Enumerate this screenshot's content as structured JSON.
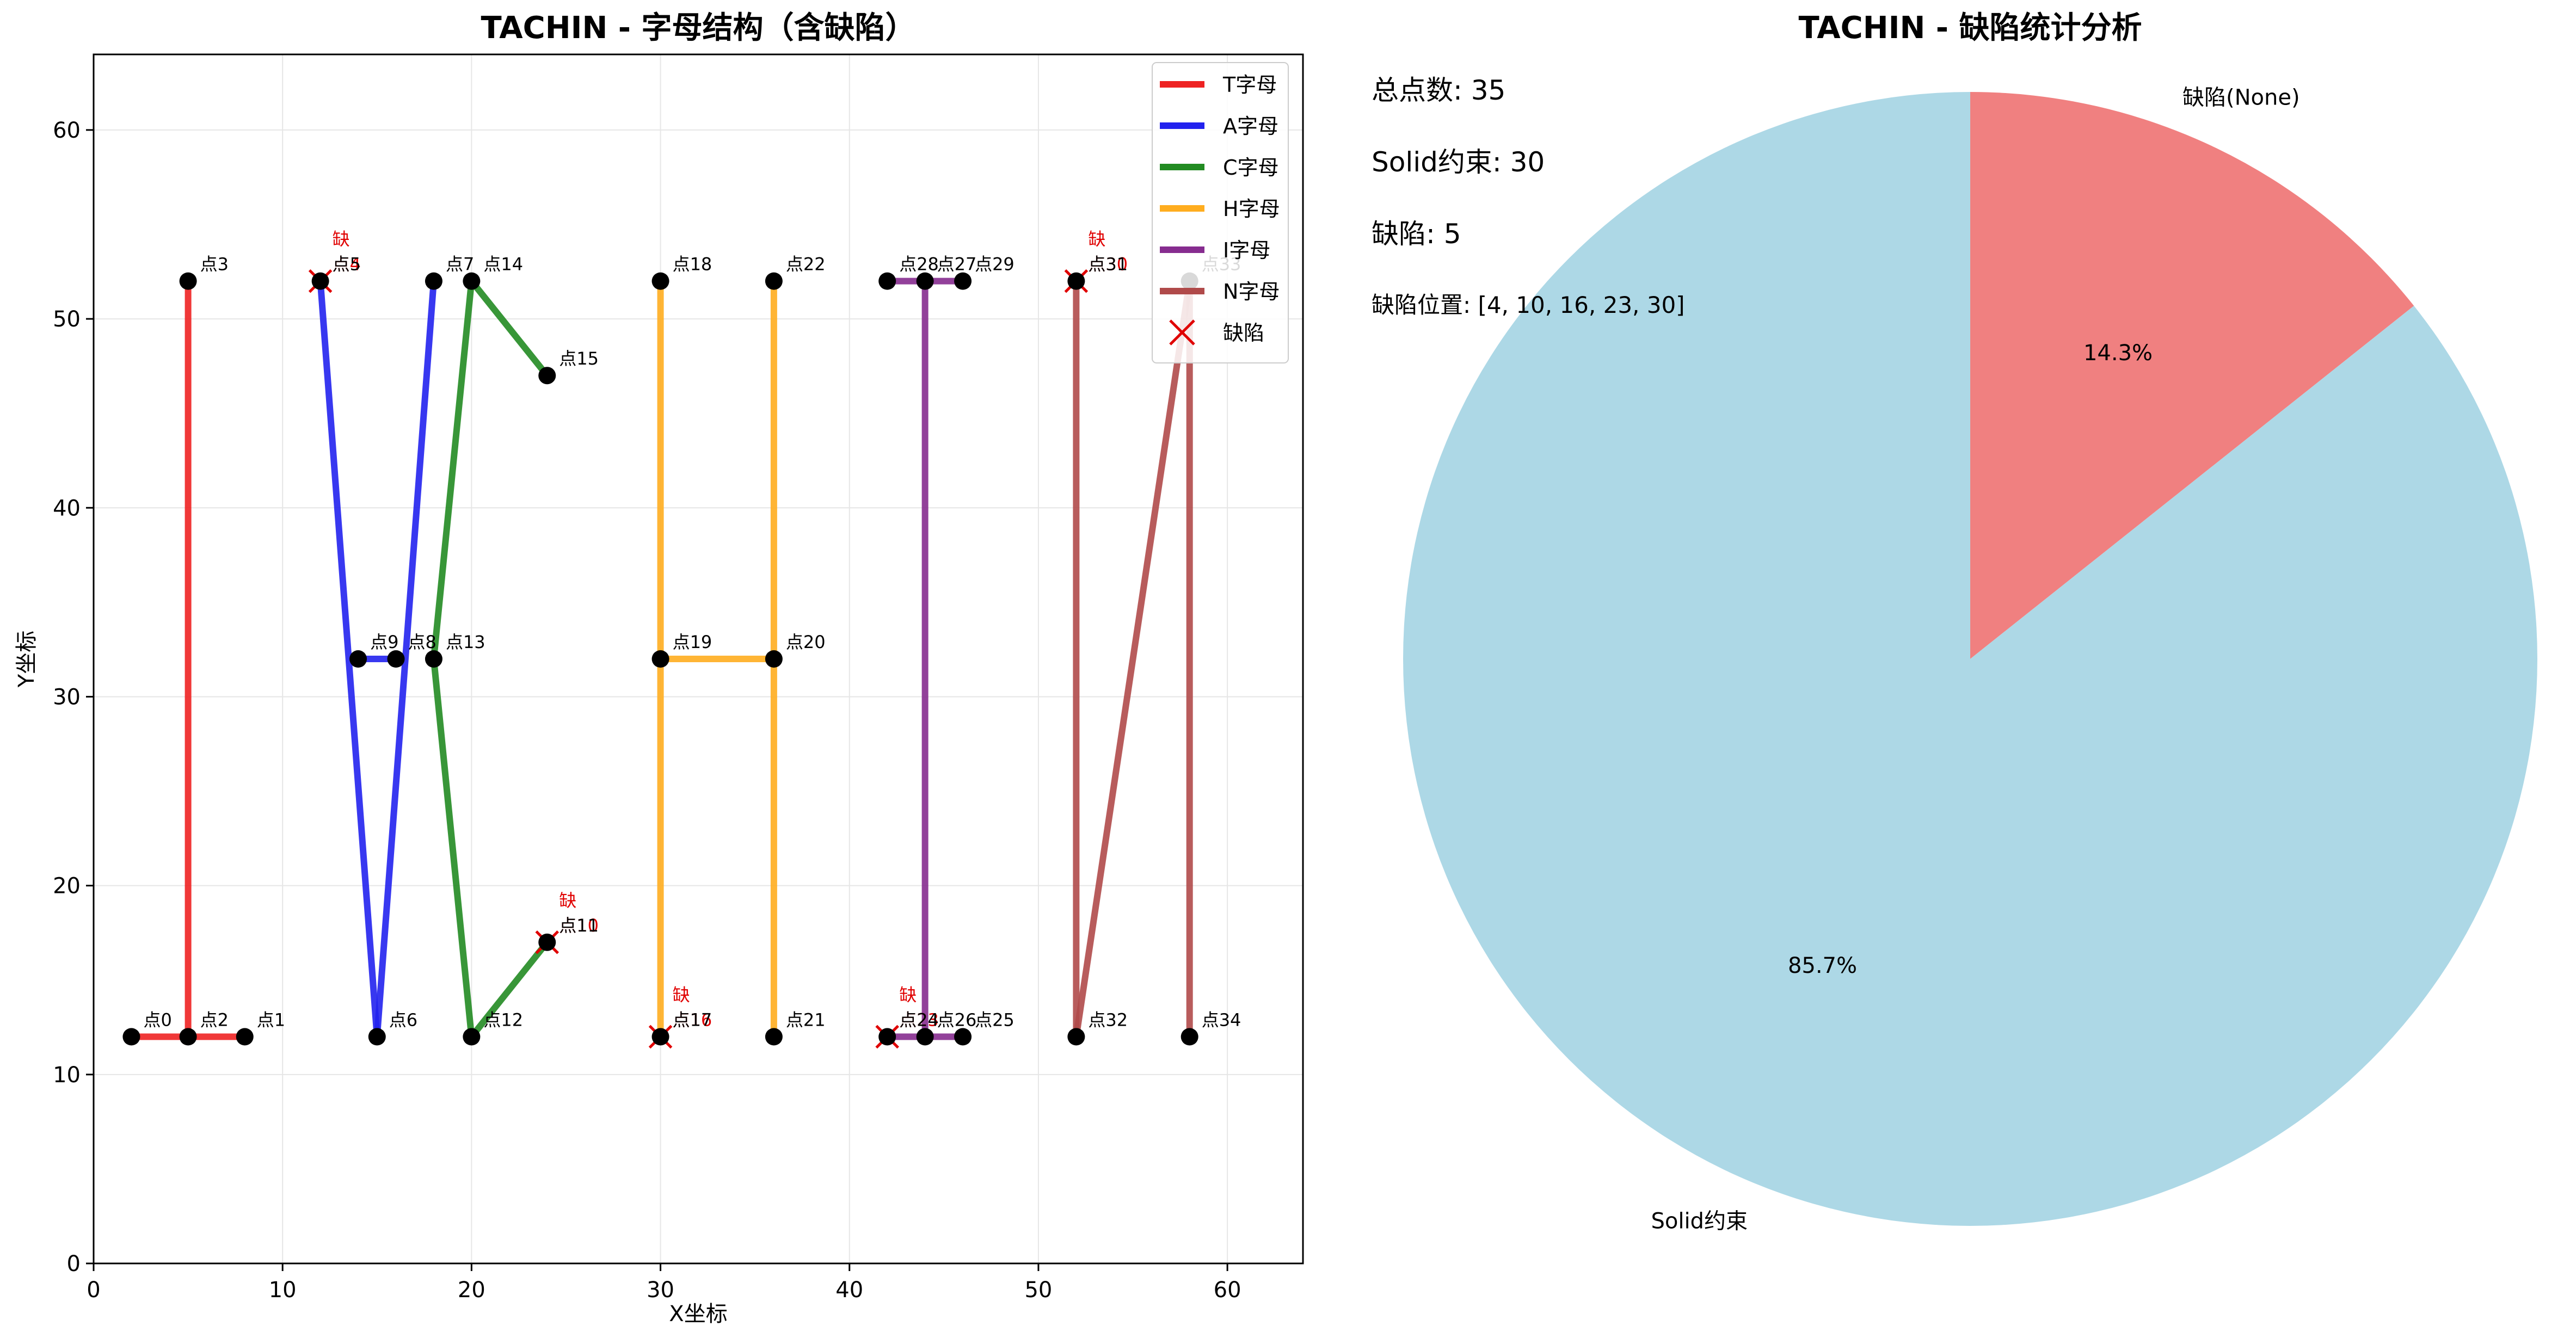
{
  "chart_data": [
    {
      "type": "line",
      "title": "TACHIN - 字母结构（含缺陷）",
      "xlabel": "X坐标",
      "ylabel": "Y坐标",
      "xlim": [
        0,
        64
      ],
      "ylim": [
        0,
        64
      ],
      "xticks": [
        0,
        10,
        20,
        30,
        40,
        50,
        60
      ],
      "yticks": [
        0,
        10,
        20,
        30,
        40,
        50,
        60
      ],
      "grid": true,
      "legend_position": "top-right",
      "points": [
        {
          "id": 0,
          "label": "点0",
          "x": 2,
          "y": 12
        },
        {
          "id": 1,
          "label": "点1",
          "x": 8,
          "y": 12
        },
        {
          "id": 2,
          "label": "点2",
          "x": 5,
          "y": 12
        },
        {
          "id": 3,
          "label": "点3",
          "x": 5,
          "y": 52
        },
        {
          "id": 4,
          "label": "点4",
          "x": 12,
          "y": 52,
          "defect": true
        },
        {
          "id": 5,
          "label": "点5",
          "x": 12,
          "y": 52
        },
        {
          "id": 6,
          "label": "点6",
          "x": 15,
          "y": 12
        },
        {
          "id": 7,
          "label": "点7",
          "x": 18,
          "y": 52
        },
        {
          "id": 8,
          "label": "点8",
          "x": 16,
          "y": 32
        },
        {
          "id": 9,
          "label": "点9",
          "x": 14,
          "y": 32
        },
        {
          "id": 10,
          "label": "点10",
          "x": 24,
          "y": 17,
          "defect": true
        },
        {
          "id": 11,
          "label": "点11",
          "x": 24,
          "y": 17
        },
        {
          "id": 12,
          "label": "点12",
          "x": 20,
          "y": 12
        },
        {
          "id": 13,
          "label": "点13",
          "x": 18,
          "y": 32
        },
        {
          "id": 14,
          "label": "点14",
          "x": 20,
          "y": 52
        },
        {
          "id": 15,
          "label": "点15",
          "x": 24,
          "y": 47
        },
        {
          "id": 16,
          "label": "点16",
          "x": 30,
          "y": 12,
          "defect": true
        },
        {
          "id": 17,
          "label": "点17",
          "x": 30,
          "y": 12
        },
        {
          "id": 18,
          "label": "点18",
          "x": 30,
          "y": 52
        },
        {
          "id": 19,
          "label": "点19",
          "x": 30,
          "y": 32
        },
        {
          "id": 20,
          "label": "点20",
          "x": 36,
          "y": 32
        },
        {
          "id": 21,
          "label": "点21",
          "x": 36,
          "y": 12
        },
        {
          "id": 22,
          "label": "点22",
          "x": 36,
          "y": 52
        },
        {
          "id": 23,
          "label": "点23",
          "x": 42,
          "y": 12,
          "defect": true
        },
        {
          "id": 24,
          "label": "点24",
          "x": 42,
          "y": 12
        },
        {
          "id": 25,
          "label": "点25",
          "x": 46,
          "y": 12
        },
        {
          "id": 26,
          "label": "点26",
          "x": 44,
          "y": 12
        },
        {
          "id": 27,
          "label": "点27",
          "x": 44,
          "y": 52
        },
        {
          "id": 28,
          "label": "点28",
          "x": 42,
          "y": 52
        },
        {
          "id": 29,
          "label": "点29",
          "x": 46,
          "y": 52
        },
        {
          "id": 30,
          "label": "点30",
          "x": 52,
          "y": 52,
          "defect": true
        },
        {
          "id": 31,
          "label": "点31",
          "x": 52,
          "y": 52
        },
        {
          "id": 32,
          "label": "点32",
          "x": 52,
          "y": 12
        },
        {
          "id": 33,
          "label": "点33",
          "x": 58,
          "y": 52
        },
        {
          "id": 34,
          "label": "点34",
          "x": 58,
          "y": 12
        }
      ],
      "series": [
        {
          "name": "T字母",
          "color": "#ee2222",
          "segments": [
            [
              [
                2,
                12
              ],
              [
                8,
                12
              ]
            ],
            [
              [
                5,
                12
              ],
              [
                5,
                52
              ]
            ]
          ]
        },
        {
          "name": "A字母",
          "color": "#2222ee",
          "segments": [
            [
              [
                12,
                52
              ],
              [
                15,
                12
              ]
            ],
            [
              [
                15,
                12
              ],
              [
                18,
                52
              ]
            ],
            [
              [
                14,
                32
              ],
              [
                16,
                32
              ]
            ]
          ]
        },
        {
          "name": "C字母",
          "color": "#228b22",
          "segments": [
            [
              [
                24,
                47
              ],
              [
                20,
                52
              ]
            ],
            [
              [
                20,
                52
              ],
              [
                18,
                32
              ]
            ],
            [
              [
                18,
                32
              ],
              [
                20,
                12
              ]
            ],
            [
              [
                20,
                12
              ],
              [
                24,
                17
              ]
            ]
          ]
        },
        {
          "name": "H字母",
          "color": "#ffad1f",
          "segments": [
            [
              [
                30,
                12
              ],
              [
                30,
                52
              ]
            ],
            [
              [
                36,
                12
              ],
              [
                36,
                52
              ]
            ],
            [
              [
                30,
                32
              ],
              [
                36,
                32
              ]
            ]
          ]
        },
        {
          "name": "I字母",
          "color": "#862c8f",
          "segments": [
            [
              [
                44,
                12
              ],
              [
                44,
                52
              ]
            ],
            [
              [
                42,
                52
              ],
              [
                46,
                52
              ]
            ],
            [
              [
                42,
                12
              ],
              [
                46,
                12
              ]
            ]
          ]
        },
        {
          "name": "N字母",
          "color": "#b04a4a",
          "segments": [
            [
              [
                52,
                12
              ],
              [
                52,
                52
              ]
            ],
            [
              [
                52,
                12
              ],
              [
                58,
                52
              ]
            ],
            [
              [
                58,
                52
              ],
              [
                58,
                12
              ]
            ]
          ]
        }
      ],
      "defect_legend": "缺陷",
      "defect_marker_text": "缺"
    },
    {
      "type": "pie",
      "title": "TACHIN - 缺陷统计分析",
      "slices": [
        {
          "label": "Solid约束",
          "value": 85.7,
          "pct_label": "85.7%",
          "color": "#add8e6"
        },
        {
          "label": "缺陷(None)",
          "value": 14.3,
          "pct_label": "14.3%",
          "color": "#f08080"
        }
      ],
      "stats": {
        "total": "总点数: 35",
        "solid": "Solid约束: 30",
        "defect": "缺陷: 5",
        "defect_positions": "缺陷位置: [4, 10, 16, 23, 30]"
      }
    }
  ]
}
